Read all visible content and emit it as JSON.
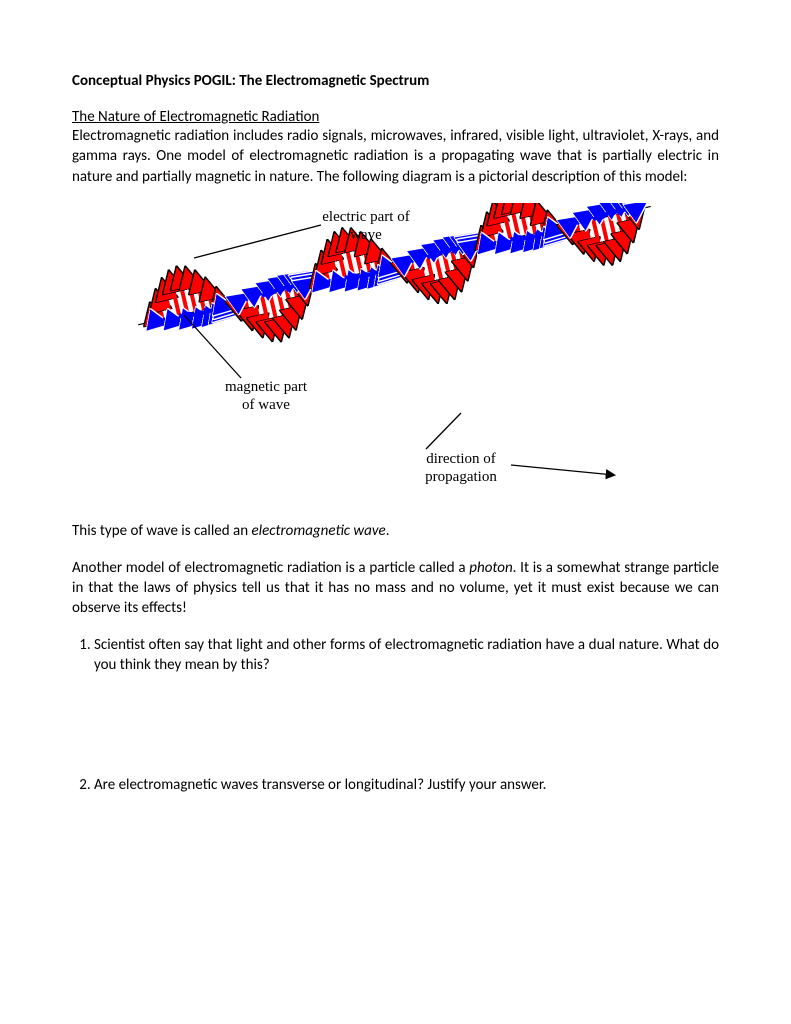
{
  "title": "Conceptual Physics POGIL: The Electromagnetic Spectrum",
  "section_heading": "The Nature of Electromagnetic Radiation",
  "intro_para": "Electromagnetic radiation includes radio signals, microwaves, infrared, visible light, ultraviolet, X-rays, and gamma rays. One model of electromagnetic radiation is a propagating wave that is partially electric in nature and partially magnetic in nature. The following diagram is a pictorial description of this model:",
  "diagram": {
    "labels": {
      "electric_l1": "electric part of",
      "electric_l2": "wave",
      "magnetic_l1": "magnetic part",
      "magnetic_l2": "of wave",
      "direction_l1": "direction of",
      "direction_l2": "propagation"
    },
    "colors": {
      "electric": "#ff0000",
      "electric_stroke": "#000000",
      "magnetic": "#0000ff",
      "magnetic_stroke": "#ffffff",
      "line": "#000000",
      "background": "#ffffff"
    },
    "axis_angle_deg": -13,
    "cycles": 3,
    "lobe_count": 6,
    "label_fontsize": 15,
    "label_font": "Times New Roman"
  },
  "after_diagram_pre": "This type of wave is called an ",
  "after_diagram_em": "electromagnetic wave",
  "after_diagram_post": ".",
  "photon_pre": "Another model of electromagnetic radiation is a particle called a ",
  "photon_em": "photon",
  "photon_post": ". It is a somewhat strange particle in that the laws of physics tell us that it has no mass and no volume, yet it must exist because we can observe its effects!",
  "questions": [
    "Scientist often say that light and other forms of electromagnetic radiation have a dual nature. What do you think they mean by this?",
    "Are electromagnetic waves transverse or longitudinal? Justify your answer."
  ]
}
